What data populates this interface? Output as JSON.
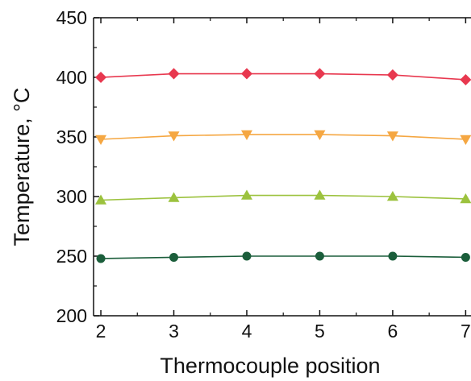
{
  "chart_data": {
    "type": "line",
    "title": "",
    "xlabel": "Thermocouple position",
    "ylabel": "Temperature, °C",
    "xlim": [
      1.9,
      7.25
    ],
    "ylim": [
      200,
      450
    ],
    "x_ticks": [
      2,
      3,
      4,
      5,
      6,
      7
    ],
    "y_ticks": [
      200,
      250,
      300,
      350,
      400,
      450
    ],
    "x_tick_labels": [
      "2",
      "3",
      "4",
      "5",
      "6",
      "7"
    ],
    "y_tick_labels": [
      "200",
      "250",
      "300",
      "350",
      "400",
      "450"
    ],
    "grid": false,
    "legend": "none",
    "x": [
      2,
      3,
      4,
      5,
      6,
      7
    ],
    "series": [
      {
        "values": [
          400,
          403,
          403,
          403,
          402,
          398
        ],
        "color": "#e8384f",
        "marker": "diamond"
      },
      {
        "values": [
          348,
          351,
          352,
          352,
          351,
          348
        ],
        "color": "#f5a742",
        "marker": "triangle-down"
      },
      {
        "values": [
          297,
          299,
          301,
          301,
          300,
          298
        ],
        "color": "#9cc23e",
        "marker": "triangle-up"
      },
      {
        "values": [
          248,
          249,
          250,
          250,
          250,
          249
        ],
        "color": "#1b5e3b",
        "marker": "circle"
      }
    ]
  }
}
